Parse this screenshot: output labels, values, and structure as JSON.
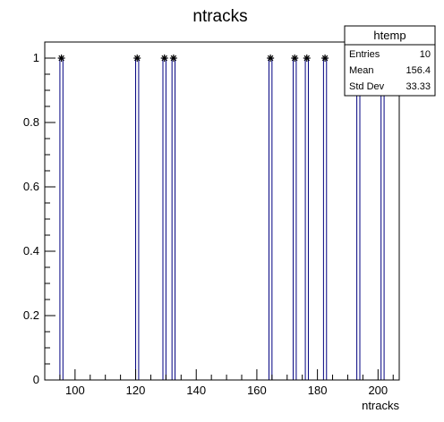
{
  "chart_data": {
    "type": "bar",
    "title": "ntracks",
    "xlabel": "ntracks",
    "ylabel": "",
    "xlim": [
      90,
      207
    ],
    "ylim": [
      0,
      1.05
    ],
    "xticks": [
      100,
      120,
      140,
      160,
      180,
      200
    ],
    "yticks": [
      0,
      0.2,
      0.4,
      0.6,
      0.8,
      1
    ],
    "ytick_labels": [
      "0",
      "0.2",
      "0.4",
      "0.6",
      "0.8",
      "1"
    ],
    "series": [
      {
        "x": [
          95.5,
          120.5,
          129.5,
          132.5,
          164.5,
          172.5,
          176.5,
          182.5,
          193.5,
          201.5
        ],
        "values": [
          1,
          1,
          1,
          1,
          1,
          1,
          1,
          1,
          1,
          1
        ],
        "bin_width": 1,
        "color": "#000080",
        "marker": "asterisk"
      }
    ],
    "grid": false,
    "legend": "none",
    "stats_box": {
      "name": "htemp",
      "rows": [
        {
          "label": "Entries",
          "value": "10"
        },
        {
          "label": "Mean",
          "value": "156.4"
        },
        {
          "label": "Std Dev",
          "value": "33.33"
        }
      ]
    }
  }
}
